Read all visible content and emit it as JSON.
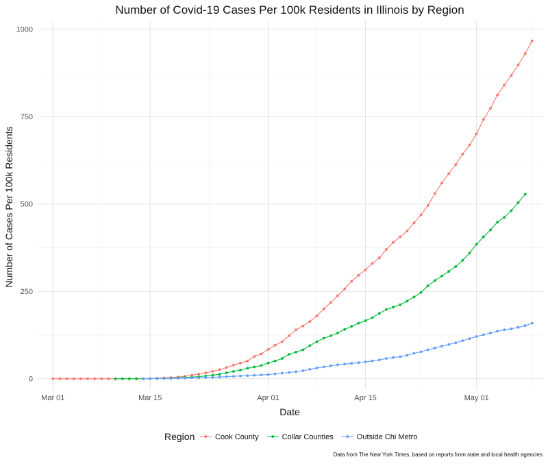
{
  "chart_data": {
    "type": "line",
    "title": "Number of Covid-19 Cases Per 100k Residents in Illinois by Region",
    "xlabel": "Date",
    "ylabel": "Number of Cases Per 100k Residents",
    "caption": "Data from The New York Times, based on reports from state and local health agencies",
    "legend_title": "Region",
    "legend_position": "bottom",
    "grid": true,
    "x_ticks": [
      {
        "day": 0,
        "label": "Mar 01"
      },
      {
        "day": 14,
        "label": "Mar 15"
      },
      {
        "day": 31,
        "label": "Apr 01"
      },
      {
        "day": 45,
        "label": "Apr 15"
      },
      {
        "day": 61,
        "label": "May 01"
      }
    ],
    "y_ticks": [
      0,
      250,
      500,
      750,
      1000
    ],
    "xlim": [
      -2.2,
      70.5
    ],
    "ylim": [
      -30,
      1025
    ],
    "series": [
      {
        "name": "Cook County",
        "color": "#F8766D",
        "start_day": 0,
        "values": [
          0,
          0,
          0,
          0,
          0,
          0,
          0,
          0,
          0,
          0,
          0,
          0.2,
          0.4,
          0.6,
          0.8,
          1.5,
          2.5,
          3.5,
          5,
          7,
          10,
          14,
          17,
          21,
          26,
          32,
          39,
          45,
          51,
          64,
          71,
          84,
          96,
          106,
          123,
          140,
          151,
          164,
          180,
          200,
          218,
          237,
          257,
          279,
          296,
          312,
          330,
          346,
          370,
          390,
          406,
          423,
          446,
          469,
          496,
          530,
          560,
          587,
          613,
          643,
          669,
          701,
          742,
          774,
          812,
          840,
          868,
          898,
          930,
          967
        ]
      },
      {
        "name": "Collar Counties",
        "color": "#00BA38",
        "start_day": 9,
        "values": [
          0,
          0,
          0,
          0,
          0,
          0.3,
          0.6,
          1,
          1.5,
          2.5,
          3.5,
          4.5,
          6,
          8,
          10,
          13,
          17,
          21,
          25,
          30,
          34,
          38,
          45,
          51,
          58,
          70,
          76,
          83,
          95,
          106,
          116,
          123,
          131,
          141,
          150,
          159,
          166,
          175,
          187,
          198,
          205,
          212,
          222,
          234,
          247,
          266,
          281,
          294,
          307,
          321,
          339,
          360,
          385,
          406,
          426,
          448,
          462,
          481,
          504,
          528
        ]
      },
      {
        "name": "Outside Chi Metro",
        "color": "#619CFF",
        "start_day": 13,
        "values": [
          0,
          0,
          0.3,
          0.6,
          1,
          1.5,
          2,
          2.5,
          3,
          3.5,
          4,
          5,
          6,
          7,
          8,
          9,
          10,
          11,
          12,
          14,
          16,
          18,
          20,
          23,
          27,
          31,
          34,
          37,
          40,
          42,
          44,
          46,
          48,
          51,
          54,
          58,
          61,
          63,
          67,
          73,
          77,
          83,
          88,
          93,
          98,
          103,
          109,
          115,
          121,
          126,
          131,
          136,
          140,
          143,
          147,
          152,
          159
        ]
      }
    ]
  }
}
